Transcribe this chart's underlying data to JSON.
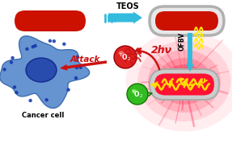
{
  "bg_color": "#ffffff",
  "teos_text": "TEOS",
  "ofbv_text": "OFBV",
  "twohv_text": "2hν",
  "attack_text": "Attack",
  "cancer_text": "Cancer cell",
  "nanorod_red": "#cc1100",
  "nanorod_silica_edge": "#b0b0b0",
  "nanorod_silica_fill": "#e8e8e8",
  "arrow_cyan": "#33bbdd",
  "cell_color": "#5588cc",
  "cell_edge": "#3366aa",
  "nucleus_color": "#2244aa",
  "nucleus_edge": "#112288",
  "o1_color": "#dd2222",
  "o3_color": "#33bb22",
  "attack_color": "#cc1111",
  "yellow_mol": "#ffdd00",
  "wavy_color": "#cc1111",
  "glow_color": "#ff2244",
  "laser_cyan": "#33bbdd",
  "teos_bar_color": "#33bbdd"
}
